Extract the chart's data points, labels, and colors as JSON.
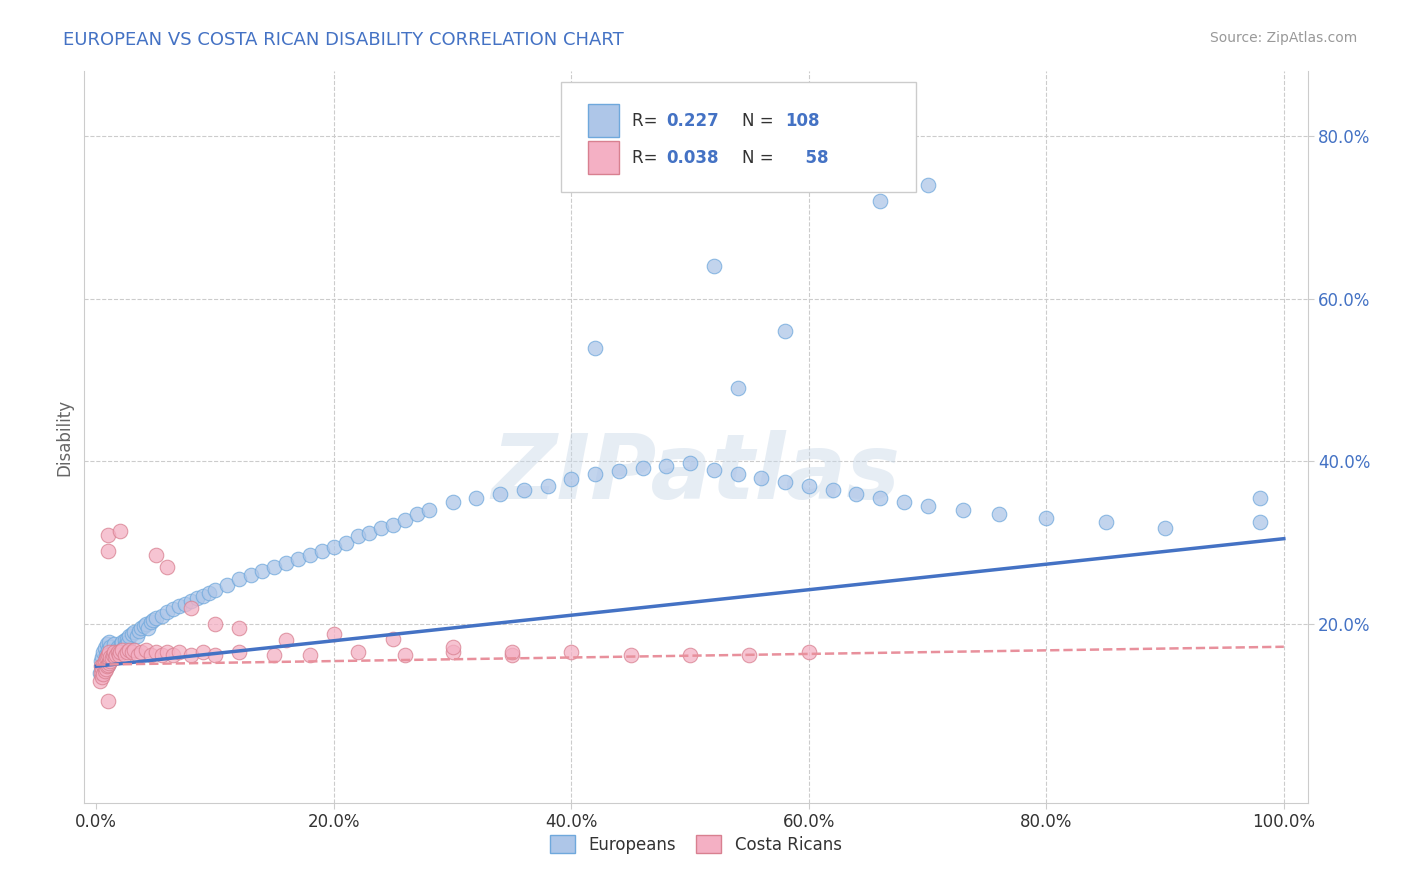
{
  "title": "EUROPEAN VS COSTA RICAN DISABILITY CORRELATION CHART",
  "source": "Source: ZipAtlas.com",
  "ylabel": "Disability",
  "xlim": [
    -0.01,
    1.02
  ],
  "ylim": [
    -0.02,
    0.88
  ],
  "xticks": [
    0.0,
    0.2,
    0.4,
    0.6,
    0.8,
    1.0
  ],
  "xticklabels": [
    "0.0%",
    "20.0%",
    "40.0%",
    "60.0%",
    "80.0%",
    "100.0%"
  ],
  "yticks": [
    0.2,
    0.4,
    0.6,
    0.8
  ],
  "yticklabels": [
    "20.0%",
    "40.0%",
    "60.0%",
    "80.0%"
  ],
  "european_color": "#aec6e8",
  "european_edge": "#6fa8dc",
  "costa_rican_color": "#f4b0c4",
  "costa_rican_edge": "#d88090",
  "trend_european_color": "#4472c4",
  "trend_costa_rican_color": "#e8909c",
  "european_R": 0.227,
  "european_N": 108,
  "costa_rican_R": 0.038,
  "costa_rican_N": 58,
  "watermark": "ZIPatlas",
  "background_color": "#ffffff",
  "grid_color": "#cccccc",
  "title_color": "#4472c4",
  "tick_color": "#4472c4",
  "source_color": "#999999",
  "eu_trend_start_y": 0.148,
  "eu_trend_end_y": 0.305,
  "cr_trend_start_y": 0.15,
  "cr_trend_end_y": 0.172,
  "eu_x": [
    0.003,
    0.004,
    0.005,
    0.005,
    0.006,
    0.006,
    0.007,
    0.007,
    0.008,
    0.008,
    0.009,
    0.009,
    0.01,
    0.01,
    0.011,
    0.011,
    0.012,
    0.012,
    0.013,
    0.014,
    0.015,
    0.015,
    0.016,
    0.017,
    0.018,
    0.019,
    0.02,
    0.021,
    0.022,
    0.023,
    0.024,
    0.025,
    0.026,
    0.027,
    0.028,
    0.03,
    0.032,
    0.034,
    0.036,
    0.038,
    0.04,
    0.042,
    0.044,
    0.046,
    0.048,
    0.05,
    0.055,
    0.06,
    0.065,
    0.07,
    0.075,
    0.08,
    0.085,
    0.09,
    0.095,
    0.1,
    0.11,
    0.12,
    0.13,
    0.14,
    0.15,
    0.16,
    0.17,
    0.18,
    0.19,
    0.2,
    0.21,
    0.22,
    0.23,
    0.24,
    0.25,
    0.26,
    0.27,
    0.28,
    0.3,
    0.32,
    0.34,
    0.36,
    0.38,
    0.4,
    0.42,
    0.44,
    0.46,
    0.48,
    0.5,
    0.52,
    0.54,
    0.56,
    0.58,
    0.6,
    0.62,
    0.64,
    0.66,
    0.68,
    0.7,
    0.73,
    0.76,
    0.8,
    0.85,
    0.9,
    0.42,
    0.52,
    0.66,
    0.7,
    0.98,
    0.98,
    0.54,
    0.58
  ],
  "eu_y": [
    0.14,
    0.155,
    0.148,
    0.16,
    0.145,
    0.165,
    0.15,
    0.17,
    0.148,
    0.162,
    0.155,
    0.175,
    0.15,
    0.168,
    0.16,
    0.178,
    0.155,
    0.172,
    0.165,
    0.16,
    0.158,
    0.175,
    0.162,
    0.168,
    0.172,
    0.165,
    0.17,
    0.175,
    0.178,
    0.172,
    0.18,
    0.175,
    0.182,
    0.178,
    0.185,
    0.188,
    0.19,
    0.185,
    0.192,
    0.195,
    0.198,
    0.2,
    0.195,
    0.202,
    0.205,
    0.208,
    0.21,
    0.215,
    0.218,
    0.222,
    0.225,
    0.228,
    0.232,
    0.235,
    0.238,
    0.242,
    0.248,
    0.255,
    0.26,
    0.265,
    0.27,
    0.275,
    0.28,
    0.285,
    0.29,
    0.295,
    0.3,
    0.308,
    0.312,
    0.318,
    0.322,
    0.328,
    0.335,
    0.34,
    0.35,
    0.355,
    0.36,
    0.365,
    0.37,
    0.378,
    0.385,
    0.388,
    0.392,
    0.395,
    0.398,
    0.39,
    0.385,
    0.38,
    0.375,
    0.37,
    0.365,
    0.36,
    0.355,
    0.35,
    0.345,
    0.34,
    0.335,
    0.33,
    0.325,
    0.318,
    0.54,
    0.64,
    0.72,
    0.74,
    0.355,
    0.325,
    0.49,
    0.56
  ],
  "cr_x": [
    0.003,
    0.004,
    0.004,
    0.005,
    0.005,
    0.006,
    0.006,
    0.007,
    0.007,
    0.008,
    0.008,
    0.009,
    0.009,
    0.01,
    0.01,
    0.011,
    0.011,
    0.012,
    0.012,
    0.013,
    0.014,
    0.015,
    0.016,
    0.017,
    0.018,
    0.019,
    0.02,
    0.022,
    0.024,
    0.026,
    0.028,
    0.03,
    0.032,
    0.035,
    0.038,
    0.042,
    0.046,
    0.05,
    0.055,
    0.06,
    0.065,
    0.07,
    0.08,
    0.09,
    0.1,
    0.12,
    0.15,
    0.18,
    0.22,
    0.26,
    0.3,
    0.35,
    0.4,
    0.45,
    0.5,
    0.55,
    0.6,
    0.01
  ],
  "cr_y": [
    0.13,
    0.14,
    0.148,
    0.135,
    0.145,
    0.138,
    0.15,
    0.142,
    0.155,
    0.145,
    0.158,
    0.148,
    0.16,
    0.15,
    0.162,
    0.152,
    0.165,
    0.155,
    0.16,
    0.158,
    0.162,
    0.165,
    0.16,
    0.162,
    0.165,
    0.162,
    0.165,
    0.168,
    0.162,
    0.165,
    0.168,
    0.165,
    0.168,
    0.162,
    0.165,
    0.168,
    0.162,
    0.165,
    0.162,
    0.165,
    0.162,
    0.165,
    0.162,
    0.165,
    0.162,
    0.165,
    0.162,
    0.162,
    0.165,
    0.162,
    0.165,
    0.162,
    0.165,
    0.162,
    0.162,
    0.162,
    0.165,
    0.105
  ],
  "cr_outlier_x": [
    0.01,
    0.01,
    0.02,
    0.05,
    0.06,
    0.08,
    0.1,
    0.12,
    0.16,
    0.2,
    0.25,
    0.3,
    0.35
  ],
  "cr_outlier_y": [
    0.29,
    0.31,
    0.315,
    0.285,
    0.27,
    0.22,
    0.2,
    0.195,
    0.18,
    0.188,
    0.182,
    0.172,
    0.165
  ]
}
